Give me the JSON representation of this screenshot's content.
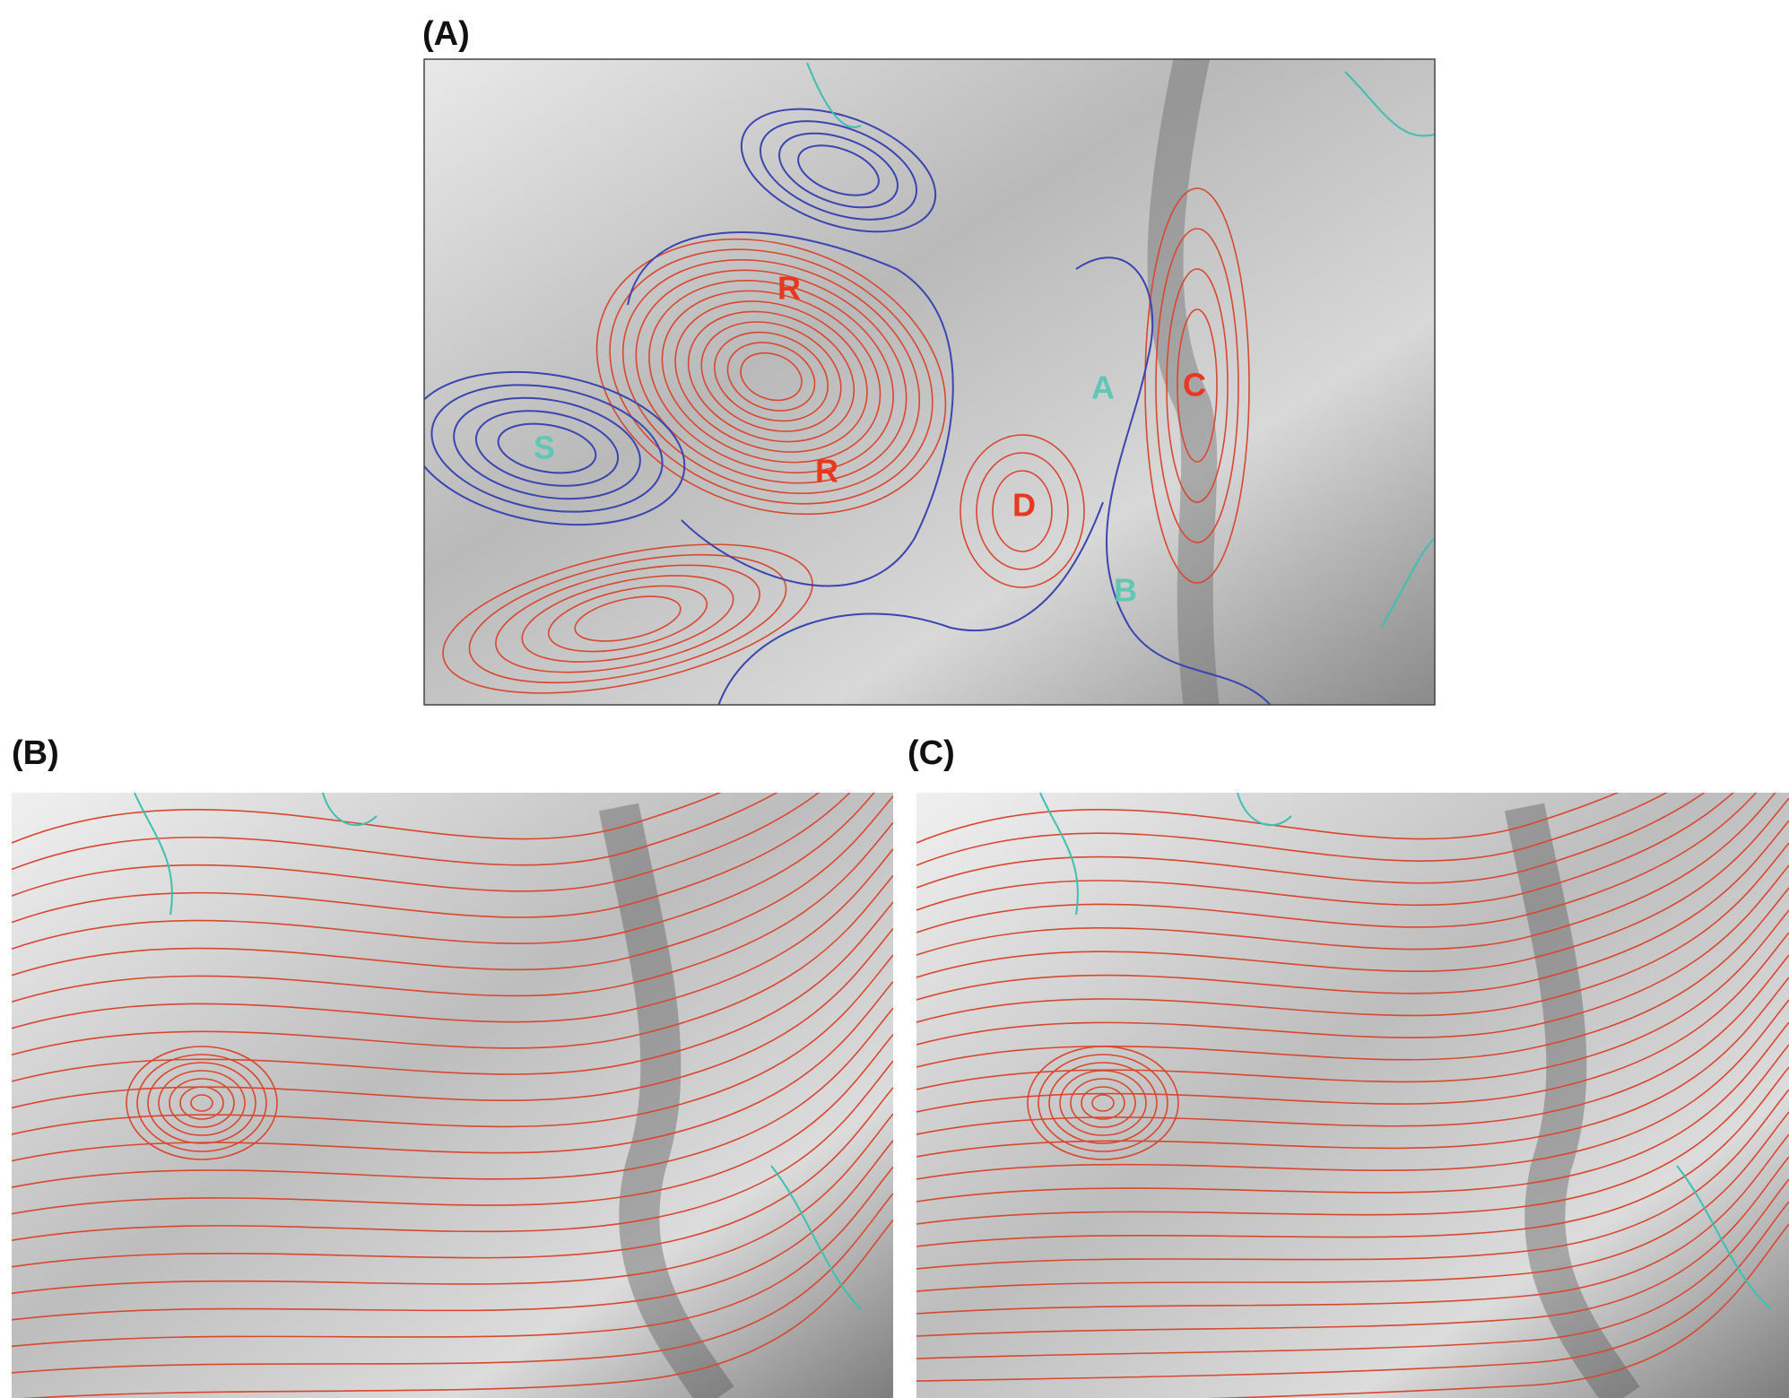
{
  "panels": [
    {
      "label": "(A)",
      "annotations": [
        "R",
        "R",
        "D",
        "S",
        "A",
        "C",
        "B"
      ]
    },
    {
      "label": "(B)"
    },
    {
      "label": "(C)"
    }
  ]
}
